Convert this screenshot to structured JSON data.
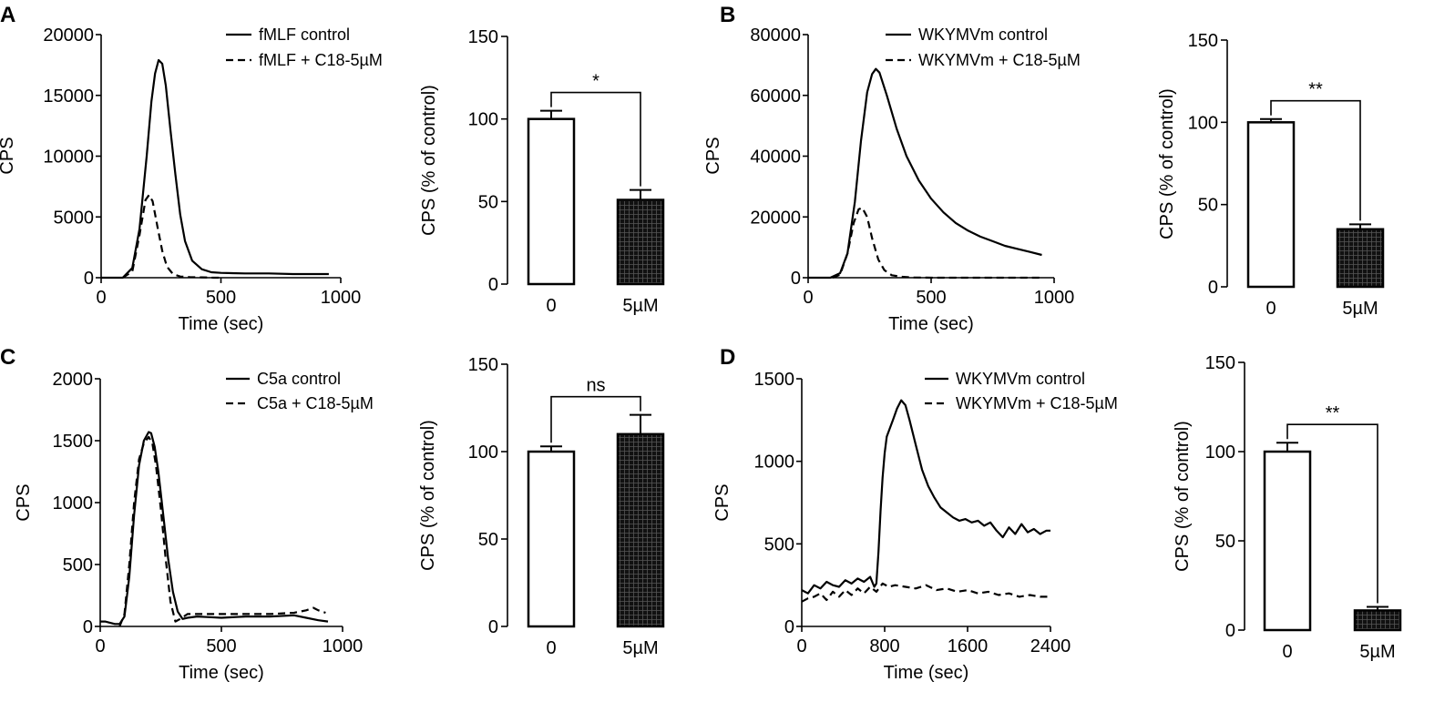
{
  "figure": {
    "panels": [
      {
        "letter": "A"
      },
      {
        "letter": "B"
      },
      {
        "letter": "C"
      },
      {
        "letter": "D"
      }
    ]
  },
  "chart_data": [
    {
      "id": "A-line",
      "type": "line",
      "panel": "A",
      "title": "",
      "xlabel": "Time (sec)",
      "ylabel": "CPS",
      "xlim": [
        0,
        1000
      ],
      "ylim": [
        0,
        20000
      ],
      "xticks": [
        0,
        500,
        1000
      ],
      "yticks": [
        0,
        5000,
        10000,
        15000,
        20000
      ],
      "tick_labels_x": [
        "0",
        "500",
        "1000"
      ],
      "tick_labels_y": [
        "0",
        "5000",
        "10000",
        "15000",
        "20000"
      ],
      "legend": "top-right",
      "series": [
        {
          "name": "fMLF  control",
          "style": "solid",
          "x": [
            0,
            90,
            130,
            160,
            190,
            210,
            225,
            240,
            255,
            270,
            290,
            310,
            330,
            350,
            380,
            420,
            460,
            500,
            600,
            700,
            800,
            950
          ],
          "y": [
            0,
            0,
            800,
            4000,
            10000,
            14500,
            16800,
            17900,
            17600,
            15800,
            12000,
            8500,
            5200,
            3000,
            1400,
            700,
            450,
            400,
            350,
            350,
            300,
            300
          ]
        },
        {
          "name": "fMLF + C18-5µM",
          "style": "dashed",
          "x": [
            90,
            130,
            160,
            185,
            200,
            215,
            235,
            255,
            275,
            300,
            330,
            370,
            420,
            470,
            500
          ],
          "y": [
            0,
            500,
            3500,
            6400,
            6800,
            6300,
            4200,
            2200,
            900,
            300,
            100,
            50,
            30,
            0,
            0
          ]
        }
      ]
    },
    {
      "id": "A-bar",
      "type": "bar",
      "panel": "A",
      "categories": [
        "0",
        "5µM"
      ],
      "values": [
        100,
        51
      ],
      "errors": [
        5,
        6
      ],
      "ylabel": "CPS (% of control)",
      "ylim": [
        0,
        150
      ],
      "yticks": [
        0,
        50,
        100,
        150
      ],
      "tick_labels_y": [
        "0",
        "50",
        "100",
        "150"
      ],
      "significance": "*"
    },
    {
      "id": "B-line",
      "type": "line",
      "panel": "B",
      "title": "",
      "xlabel": "Time (sec)",
      "ylabel": "CPS",
      "xlim": [
        0,
        1000
      ],
      "ylim": [
        0,
        80000
      ],
      "xticks": [
        0,
        500,
        1000
      ],
      "yticks": [
        0,
        20000,
        40000,
        60000,
        80000
      ],
      "tick_labels_x": [
        "0",
        "500",
        "1000"
      ],
      "tick_labels_y": [
        "0",
        "20000",
        "40000",
        "60000",
        "80000"
      ],
      "legend": "top-right",
      "series": [
        {
          "name": "WKYMVm  control",
          "style": "solid",
          "x": [
            0,
            90,
            130,
            160,
            190,
            215,
            240,
            260,
            275,
            290,
            320,
            360,
            400,
            450,
            500,
            550,
            600,
            650,
            700,
            750,
            800,
            850,
            900,
            950
          ],
          "y": [
            0,
            0,
            1500,
            8000,
            25000,
            45000,
            61000,
            67000,
            68700,
            67500,
            60000,
            49000,
            40000,
            32000,
            26000,
            21500,
            18000,
            15500,
            13500,
            12000,
            10500,
            9500,
            8500,
            7500
          ]
        },
        {
          "name": "WKYMVm + C18-5µM",
          "style": "dashed",
          "x": [
            100,
            130,
            160,
            185,
            205,
            220,
            240,
            260,
            285,
            310,
            340,
            380,
            430,
            500,
            600,
            700,
            800,
            950
          ],
          "y": [
            0,
            1000,
            8000,
            18000,
            22500,
            23000,
            20000,
            13000,
            6000,
            2500,
            800,
            300,
            100,
            0,
            0,
            0,
            0,
            0
          ]
        }
      ]
    },
    {
      "id": "B-bar",
      "type": "bar",
      "panel": "B",
      "categories": [
        "0",
        "5µM"
      ],
      "values": [
        100,
        35
      ],
      "errors": [
        2,
        3
      ],
      "ylabel": "CPS (% of control)",
      "ylim": [
        0,
        150
      ],
      "yticks": [
        0,
        50,
        100,
        150
      ],
      "tick_labels_y": [
        "0",
        "50",
        "100",
        "150"
      ],
      "significance": "**"
    },
    {
      "id": "C-line",
      "type": "line",
      "panel": "C",
      "title": "",
      "xlabel": "Time (sec)",
      "ylabel": "CPS",
      "xlim": [
        0,
        1000
      ],
      "ylim": [
        0,
        2000
      ],
      "xticks": [
        0,
        500,
        1000
      ],
      "yticks": [
        0,
        500,
        1000,
        1500,
        2000
      ],
      "tick_labels_x": [
        "0",
        "500",
        "1000"
      ],
      "tick_labels_y": [
        "0",
        "500",
        "1000",
        "1500",
        "2000"
      ],
      "legend": "top-right",
      "series": [
        {
          "name": "C5a control",
          "style": "solid",
          "x": [
            0,
            20,
            40,
            60,
            80,
            100,
            120,
            140,
            160,
            180,
            200,
            210,
            225,
            240,
            260,
            280,
            300,
            320,
            340,
            360,
            400,
            450,
            500,
            600,
            700,
            800,
            850,
            900,
            940
          ],
          "y": [
            40,
            40,
            30,
            20,
            20,
            80,
            400,
            900,
            1300,
            1500,
            1570,
            1560,
            1450,
            1250,
            900,
            550,
            280,
            120,
            60,
            70,
            80,
            75,
            70,
            80,
            80,
            90,
            70,
            50,
            40
          ]
        },
        {
          "name": "C5a + C18-5µM",
          "style": "dashed",
          "x": [
            80,
            100,
            120,
            140,
            160,
            180,
            200,
            215,
            230,
            250,
            270,
            290,
            310,
            330,
            360,
            400,
            500,
            600,
            700,
            800,
            850,
            880,
            900,
            930
          ],
          "y": [
            0,
            100,
            500,
            1000,
            1350,
            1480,
            1530,
            1480,
            1300,
            950,
            550,
            200,
            40,
            60,
            100,
            100,
            100,
            100,
            100,
            110,
            130,
            150,
            130,
            110
          ]
        }
      ]
    },
    {
      "id": "C-bar",
      "type": "bar",
      "panel": "C",
      "categories": [
        "0",
        "5µM"
      ],
      "values": [
        100,
        110
      ],
      "errors": [
        3,
        11
      ],
      "ylabel": "CPS (% of control)",
      "ylim": [
        0,
        150
      ],
      "yticks": [
        0,
        50,
        100,
        150
      ],
      "tick_labels_y": [
        "0",
        "50",
        "100",
        "150"
      ],
      "significance": "ns"
    },
    {
      "id": "D-line",
      "type": "line",
      "panel": "D",
      "title": "",
      "xlabel": "Time (sec)",
      "ylabel": "CPS",
      "xlim": [
        0,
        2400
      ],
      "ylim": [
        0,
        1500
      ],
      "xticks": [
        0,
        800,
        1600,
        2400
      ],
      "yticks": [
        0,
        500,
        1000,
        1500
      ],
      "tick_labels_x": [
        "0",
        "800",
        "1600",
        "2400"
      ],
      "tick_labels_y": [
        "0",
        "500",
        "1000",
        "1500"
      ],
      "legend": "top-right",
      "series": [
        {
          "name": "WKYMVm  control",
          "style": "solid",
          "x": [
            0,
            60,
            120,
            180,
            240,
            300,
            360,
            420,
            480,
            540,
            600,
            660,
            700,
            720,
            740,
            760,
            780,
            800,
            820,
            850,
            880,
            920,
            960,
            1000,
            1040,
            1100,
            1160,
            1220,
            1280,
            1340,
            1400,
            1460,
            1520,
            1580,
            1640,
            1700,
            1760,
            1820,
            1880,
            1940,
            2000,
            2060,
            2120,
            2180,
            2240,
            2300,
            2360,
            2400
          ],
          "y": [
            220,
            200,
            250,
            230,
            270,
            250,
            240,
            280,
            260,
            290,
            270,
            300,
            240,
            260,
            450,
            700,
            900,
            1050,
            1150,
            1200,
            1250,
            1320,
            1370,
            1340,
            1250,
            1100,
            950,
            850,
            780,
            720,
            690,
            660,
            640,
            650,
            630,
            640,
            610,
            630,
            580,
            540,
            600,
            560,
            620,
            570,
            590,
            560,
            580,
            580
          ]
        },
        {
          "name": "WKYMVm + C18-5µM",
          "style": "dashed",
          "x": [
            0,
            60,
            120,
            180,
            240,
            300,
            360,
            420,
            480,
            540,
            600,
            660,
            720,
            780,
            840,
            900,
            1000,
            1100,
            1200,
            1300,
            1400,
            1500,
            1600,
            1700,
            1800,
            1900,
            2000,
            2100,
            2200,
            2300,
            2400
          ],
          "y": [
            150,
            170,
            180,
            200,
            160,
            210,
            180,
            220,
            190,
            230,
            200,
            240,
            210,
            260,
            240,
            250,
            240,
            230,
            250,
            220,
            230,
            210,
            220,
            200,
            210,
            190,
            200,
            180,
            190,
            180,
            180
          ]
        }
      ]
    },
    {
      "id": "D-bar",
      "type": "bar",
      "panel": "D",
      "categories": [
        "0",
        "5µM"
      ],
      "values": [
        100,
        11
      ],
      "errors": [
        5,
        2
      ],
      "ylabel": "CPS (% of control)",
      "ylim": [
        0,
        150
      ],
      "yticks": [
        0,
        50,
        100,
        150
      ],
      "tick_labels_y": [
        "0",
        "50",
        "100",
        "150"
      ],
      "significance": "**"
    }
  ]
}
